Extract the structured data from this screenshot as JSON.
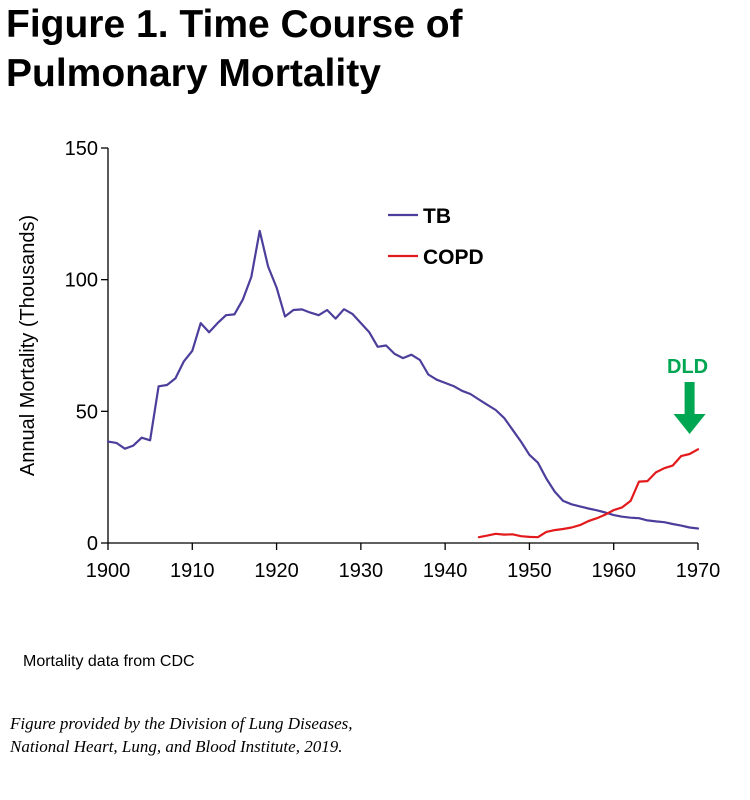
{
  "title": {
    "line1": "Figure 1. Time Course of",
    "line2": "Pulmonary Mortality"
  },
  "chart_data": {
    "type": "line",
    "ylabel": "Annual Mortality (Thousands)",
    "xlabel": "",
    "xlim": [
      1900,
      1970
    ],
    "ylim": [
      0,
      150
    ],
    "xticks": [
      1900,
      1910,
      1920,
      1930,
      1940,
      1950,
      1960,
      1970
    ],
    "yticks": [
      0,
      50,
      100,
      150
    ],
    "legend_position": "top-right",
    "series": [
      {
        "name": "TB",
        "color": "#4b3f9b",
        "x": [
          1900,
          1901,
          1902,
          1903,
          1904,
          1905,
          1906,
          1907,
          1908,
          1909,
          1910,
          1911,
          1912,
          1913,
          1914,
          1915,
          1916,
          1917,
          1918,
          1919,
          1920,
          1921,
          1922,
          1923,
          1924,
          1925,
          1926,
          1927,
          1928,
          1929,
          1930,
          1931,
          1932,
          1933,
          1934,
          1935,
          1936,
          1937,
          1938,
          1939,
          1940,
          1941,
          1942,
          1943,
          1944,
          1945,
          1946,
          1947,
          1948,
          1949,
          1950,
          1951,
          1952,
          1953,
          1954,
          1955,
          1956,
          1957,
          1958,
          1959,
          1960,
          1961,
          1962,
          1963,
          1964,
          1965,
          1966,
          1967,
          1968,
          1969,
          1970
        ],
        "values": [
          38.5,
          38,
          35.8,
          37,
          40,
          39,
          59.5,
          60,
          62.5,
          69,
          73,
          83.5,
          80,
          83.5,
          86.5,
          86.8,
          92.5,
          101,
          118.5,
          105,
          97,
          86,
          88.5,
          88.7,
          87.5,
          86.5,
          88.5,
          85.2,
          88.8,
          87,
          83.5,
          80,
          74.5,
          75,
          71.8,
          70.2,
          71.5,
          69.5,
          64,
          62,
          60.8,
          59.6,
          57.8,
          56.6,
          54.5,
          52.5,
          50.5,
          47.5,
          43,
          38.5,
          33.5,
          30.5,
          24.5,
          19.5,
          16,
          14.7,
          13.9,
          13.1,
          12.4,
          11.6,
          10.6,
          10,
          9.6,
          9.4,
          8.6,
          8.2,
          7.9,
          7.2,
          6.6,
          5.9,
          5.5
        ]
      },
      {
        "name": "COPD",
        "color": "#e31a1c",
        "x": [
          1944,
          1945,
          1946,
          1947,
          1948,
          1949,
          1950,
          1951,
          1952,
          1953,
          1954,
          1955,
          1956,
          1957,
          1958,
          1959,
          1960,
          1961,
          1962,
          1963,
          1964,
          1965,
          1966,
          1967,
          1968,
          1969,
          1970
        ],
        "values": [
          2.2,
          2.8,
          3.5,
          3.2,
          3.3,
          2.6,
          2.3,
          2.2,
          4.2,
          4.9,
          5.3,
          5.9,
          6.8,
          8.3,
          9.4,
          10.8,
          12.5,
          13.5,
          16,
          23.3,
          23.5,
          26.8,
          28.4,
          29.4,
          33,
          33.8,
          35.6
        ]
      }
    ],
    "annotation": {
      "text": "DLD",
      "color": "#00a651",
      "x": 1969
    }
  },
  "footnote": {
    "source": "Mortality data from CDC",
    "credit_line1": "Figure provided by the Division of Lung Diseases,",
    "credit_line2": "National Heart, Lung, and Blood Institute, 2019."
  }
}
